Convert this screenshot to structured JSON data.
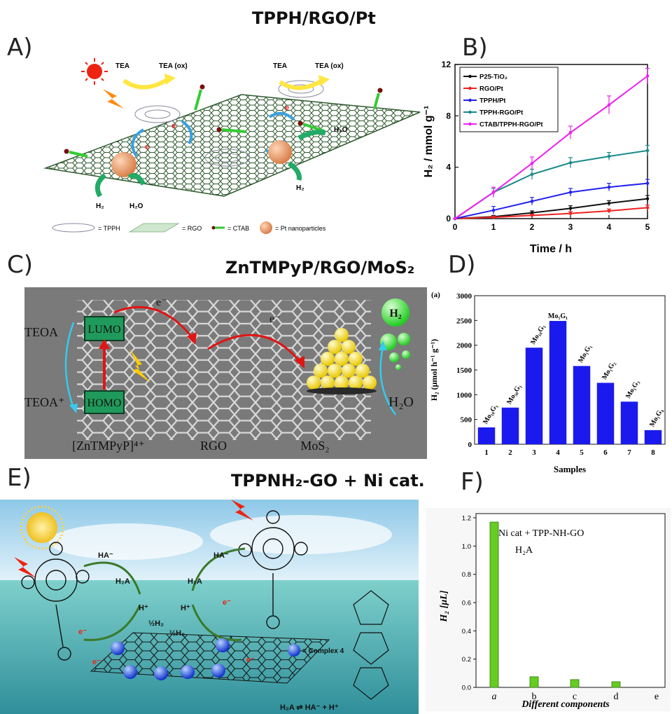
{
  "section_titles": {
    "top": "TPPH/RGO/Pt",
    "middle": "ZnTMPyP/RGO/MoS₂",
    "bottom": "TPPNH₂-GO + Ni cat."
  },
  "panel_labels": [
    "A)",
    "B)",
    "C)",
    "D)",
    "E)",
    "F)"
  ],
  "panel_a": {
    "labels": {
      "tea1": "TEA",
      "teaox1": "TEA (ox)",
      "tea2": "TEA",
      "teaox2": "TEA (ox)",
      "e": "e",
      "h2_left": "H₂",
      "h2o_left": "H₂O",
      "h2o_right": "H₂O",
      "h2_right": "H₂"
    },
    "legend": {
      "tpph": "= TPPH",
      "rgo": "= RGO",
      "ctab": "= CTAB",
      "pt": "= Pt nanoparticles"
    },
    "colors": {
      "sheet": "#2f5a2f",
      "arrow_yellow": "#ffe640",
      "arrow_green": "#22aa66",
      "arrow_blue": "#3aa0e0",
      "pt": "#f0a070",
      "ctab": "#33cc33",
      "sun": "#ee2211"
    }
  },
  "panel_c": {
    "labels": {
      "lumo": "LUMO",
      "homo": "HOMO",
      "teoa": "TEOA",
      "teoa_plus": "TEOA⁺",
      "e1": "e⁻",
      "e2": "e⁻",
      "h2": "H₂",
      "h2o": "H₂O",
      "zn": "[ZnTMPyP]⁴⁺",
      "rgo": "RGO",
      "mos2": "MoS₂"
    },
    "colors": {
      "background": "#7a7a7a",
      "box": "#1f9a5a",
      "arrow_red": "#e01515",
      "arrow_cyan": "#33ccee",
      "mos2": "#ffe833",
      "bubble": "#33ee33"
    }
  },
  "panel_e": {
    "labels": {
      "ha1": "HA⁻",
      "ha2": "HA⁻",
      "h2a1": "H₂A",
      "h2a2": "H₂A",
      "hplus1": "H⁺",
      "hplus2": "H⁺",
      "half1": "½H₂",
      "half2": "½H₂",
      "e": "e⁻",
      "complex": "= Complex 4",
      "equilibrium": "H₂A ⇌ HA⁻ + H⁺"
    },
    "colors": {
      "sky": "#bcdff0",
      "sea": "#57b3b3",
      "sphere": "#2255ee",
      "arrow_green": "#3a7a2a",
      "sun": "#ffd23a"
    }
  },
  "chart_data": [
    {
      "type": "line",
      "panel": "B",
      "xlabel": "Time / h",
      "ylabel": "H₂ / mmol g⁻¹",
      "x": [
        0,
        1,
        2,
        3,
        4,
        5
      ],
      "xlim": [
        0,
        5
      ],
      "ylim": [
        0,
        12
      ],
      "xticks": [
        0,
        1,
        2,
        3,
        4,
        5
      ],
      "yticks": [
        0,
        4,
        8,
        12
      ],
      "legend_position": "top-left",
      "series": [
        {
          "name": "P25-TiO₂",
          "color": "#111111",
          "values": [
            0,
            0.15,
            0.45,
            0.8,
            1.2,
            1.55
          ],
          "errors": [
            0,
            0.1,
            0.15,
            0.2,
            0.2,
            0.25
          ]
        },
        {
          "name": "RGO/Pt",
          "color": "#ee2222",
          "values": [
            0,
            0.1,
            0.25,
            0.4,
            0.6,
            0.85
          ],
          "errors": [
            0,
            0.1,
            0.1,
            0.15,
            0.15,
            0.2
          ]
        },
        {
          "name": "TPPH/Pt",
          "color": "#2222ee",
          "values": [
            0,
            0.65,
            1.35,
            2.05,
            2.45,
            2.75
          ],
          "errors": [
            0,
            0.3,
            0.3,
            0.3,
            0.3,
            0.3
          ]
        },
        {
          "name": "TPPH-RGO/Pt",
          "color": "#1a8a8a",
          "values": [
            0,
            2.05,
            3.45,
            4.35,
            4.85,
            5.3
          ],
          "errors": [
            0,
            0.3,
            0.4,
            0.4,
            0.3,
            0.4
          ]
        },
        {
          "name": "CTAB/TPPH-RGO/Pt",
          "color": "#ee22ee",
          "values": [
            0,
            2.05,
            4.3,
            6.7,
            8.85,
            11.1
          ],
          "errors": [
            0,
            0.4,
            0.5,
            0.5,
            0.7,
            0.6
          ]
        }
      ]
    },
    {
      "type": "bar",
      "panel": "D",
      "tag": "(a)",
      "xlabel": "Samples",
      "ylabel": "H₂ (μmol h⁻¹ g⁻¹)",
      "categories": [
        "1",
        "2",
        "3",
        "4",
        "5",
        "6",
        "7",
        "8"
      ],
      "values": [
        340,
        740,
        1950,
        2490,
        1580,
        1240,
        860,
        285
      ],
      "bar_labels": [
        "Mo₁₀G₁",
        "Mo₅₀G₁",
        "Mo₁₀G₁",
        "Mo₅G₁",
        "Mo₁G₁",
        "Mo₁G₂",
        "Mo₁G₃",
        "Mo₁G₄"
      ],
      "ylim": [
        0,
        3000
      ],
      "yticks": [
        0,
        500,
        1000,
        1500,
        2000,
        2500,
        3000
      ],
      "color": "#1a1aee"
    },
    {
      "type": "bar",
      "panel": "F",
      "xlabel": "Different components",
      "ylabel": "H₂ [μL]",
      "categories": [
        "a",
        "b",
        "c",
        "d",
        "e"
      ],
      "values": [
        1.17,
        0.075,
        0.055,
        0.04,
        0
      ],
      "ylim": [
        0,
        1.2
      ],
      "yticks": [
        0.0,
        0.2,
        0.4,
        0.6,
        0.8,
        1.0,
        1.2
      ],
      "legend": [
        "Ni cat + TPP-NH-GO",
        "H₂A"
      ],
      "legend_position": "top-left",
      "color": "#66cc22"
    }
  ]
}
